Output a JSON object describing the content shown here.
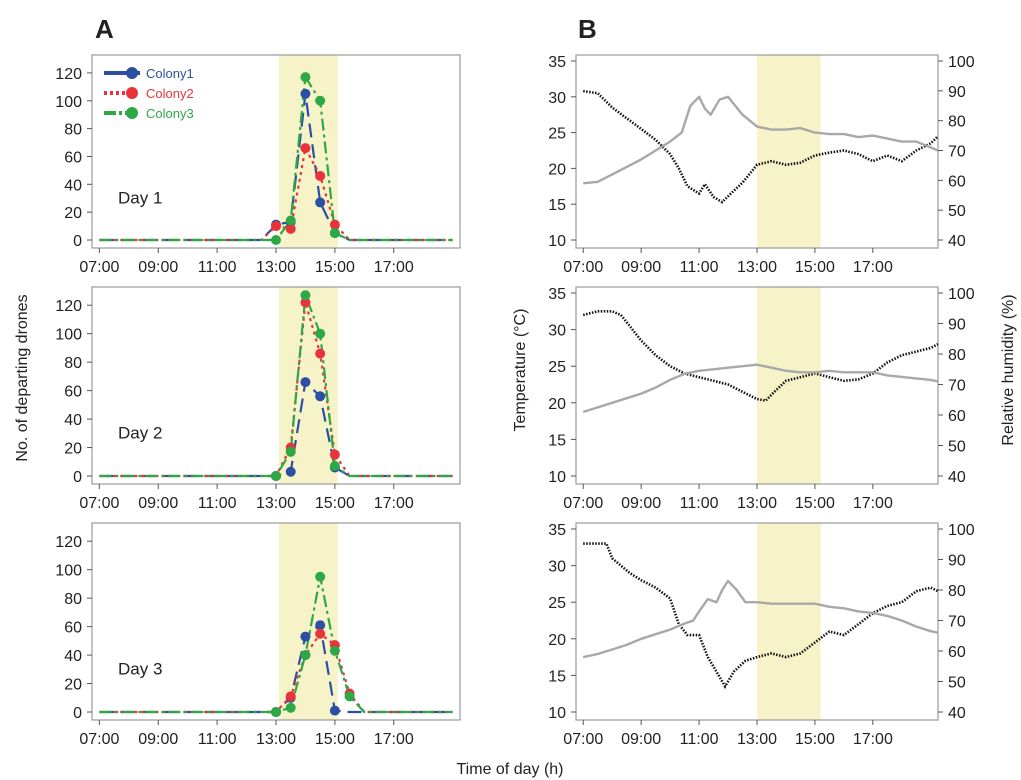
{
  "figure": {
    "panel_a_label": "A",
    "panel_b_label": "B",
    "ylabel_a": "No. of departing drones",
    "ylabel_b_left": "Temperature (°C)",
    "ylabel_b_right": "Relative humidity (%)",
    "xlabel": "Time of day (h)",
    "highlight_color": "#f7f3c8"
  },
  "chart_data": [
    {
      "type": "line",
      "panel": "A",
      "day_label": "Day 1",
      "x_ticks": [
        "07:00",
        "09:00",
        "11:00",
        "13:00",
        "15:00",
        "17:00"
      ],
      "ylim": [
        0,
        130
      ],
      "y_ticks": [
        0,
        20,
        40,
        60,
        80,
        100,
        120
      ],
      "x_range_h": [
        6.75,
        19.25
      ],
      "highlight_h": [
        13.1,
        15.1
      ],
      "legend": "top-left",
      "x": [
        "07:00",
        "07:30",
        "08:00",
        "08:30",
        "09:00",
        "09:30",
        "10:00",
        "10:30",
        "11:00",
        "11:30",
        "12:00",
        "12:30",
        "13:00",
        "13:30",
        "14:00",
        "14:30",
        "15:00",
        "15:30",
        "16:00",
        "16:30",
        "17:00",
        "17:30",
        "18:00",
        "18:30",
        "19:00"
      ],
      "series": [
        {
          "name": "Colony1",
          "color": "#2b4fa3",
          "dash": "14,7",
          "values": [
            0,
            0,
            0,
            0,
            0,
            0,
            0,
            0,
            0,
            0,
            0,
            0,
            11,
            13,
            105,
            27,
            5,
            0,
            0,
            0,
            0,
            0,
            0,
            0,
            0
          ]
        },
        {
          "name": "Colony2",
          "color": "#e8333a",
          "dash": "3,4",
          "values": [
            0,
            0,
            0,
            0,
            0,
            0,
            0,
            0,
            0,
            0,
            0,
            0,
            10,
            8,
            66,
            46,
            11,
            0,
            0,
            0,
            0,
            0,
            0,
            0,
            0
          ]
        },
        {
          "name": "Colony3",
          "color": "#2ca845",
          "dash": "12,4,3,4",
          "values": [
            0,
            0,
            0,
            0,
            0,
            0,
            0,
            0,
            0,
            0,
            0,
            0,
            0,
            14,
            117,
            100,
            5,
            0,
            0,
            0,
            0,
            0,
            0,
            0,
            0
          ]
        }
      ]
    },
    {
      "type": "line",
      "panel": "A",
      "day_label": "Day 2",
      "x_ticks": [
        "07:00",
        "09:00",
        "11:00",
        "13:00",
        "15:00",
        "17:00"
      ],
      "ylim": [
        0,
        130
      ],
      "y_ticks": [
        0,
        20,
        40,
        60,
        80,
        100,
        120
      ],
      "x_range_h": [
        6.75,
        19.25
      ],
      "highlight_h": [
        13.1,
        15.1
      ],
      "x": [
        "07:00",
        "07:30",
        "08:00",
        "08:30",
        "09:00",
        "09:30",
        "10:00",
        "10:30",
        "11:00",
        "11:30",
        "12:00",
        "12:30",
        "13:00",
        "13:30",
        "14:00",
        "14:30",
        "15:00",
        "15:30",
        "16:00",
        "16:30",
        "17:00",
        "17:30",
        "18:00",
        "18:30",
        "19:00"
      ],
      "series": [
        {
          "name": "Colony1",
          "color": "#2b4fa3",
          "dash": "14,7",
          "values": [
            0,
            0,
            0,
            0,
            0,
            0,
            0,
            0,
            0,
            0,
            0,
            0,
            0,
            3,
            66,
            56,
            6,
            0,
            0,
            0,
            0,
            0,
            0,
            0,
            0
          ]
        },
        {
          "name": "Colony2",
          "color": "#e8333a",
          "dash": "3,4",
          "values": [
            0,
            0,
            0,
            0,
            0,
            0,
            0,
            0,
            0,
            0,
            0,
            0,
            0,
            20,
            122,
            86,
            15,
            0,
            0,
            0,
            0,
            0,
            0,
            0,
            0
          ]
        },
        {
          "name": "Colony3",
          "color": "#2ca845",
          "dash": "12,4,3,4",
          "values": [
            0,
            0,
            0,
            0,
            0,
            0,
            0,
            0,
            0,
            0,
            0,
            0,
            0,
            17,
            127,
            100,
            7,
            0,
            0,
            0,
            0,
            0,
            0,
            0,
            0
          ]
        }
      ]
    },
    {
      "type": "line",
      "panel": "A",
      "day_label": "Day 3",
      "x_ticks": [
        "07:00",
        "09:00",
        "11:00",
        "13:00",
        "15:00",
        "17:00"
      ],
      "ylim": [
        0,
        130
      ],
      "y_ticks": [
        0,
        20,
        40,
        60,
        80,
        100,
        120
      ],
      "x_range_h": [
        6.75,
        19.25
      ],
      "highlight_h": [
        13.1,
        15.1
      ],
      "x": [
        "07:00",
        "07:30",
        "08:00",
        "08:30",
        "09:00",
        "09:30",
        "10:00",
        "10:30",
        "11:00",
        "11:30",
        "12:00",
        "12:30",
        "13:00",
        "13:30",
        "14:00",
        "14:30",
        "15:00",
        "15:30",
        "16:00",
        "16:30",
        "17:00",
        "17:30",
        "18:00",
        "18:30",
        "19:00"
      ],
      "series": [
        {
          "name": "Colony1",
          "color": "#2b4fa3",
          "dash": "14,7",
          "values": [
            0,
            0,
            0,
            0,
            0,
            0,
            0,
            0,
            0,
            0,
            0,
            0,
            0,
            10,
            53,
            61,
            1,
            0,
            0,
            0,
            0,
            0,
            0,
            0,
            0
          ]
        },
        {
          "name": "Colony2",
          "color": "#e8333a",
          "dash": "3,4",
          "values": [
            0,
            0,
            0,
            0,
            0,
            0,
            0,
            0,
            0,
            0,
            0,
            0,
            0,
            11,
            40,
            55,
            47,
            13,
            0,
            0,
            0,
            0,
            0,
            0,
            0
          ]
        },
        {
          "name": "Colony3",
          "color": "#2ca845",
          "dash": "12,4,3,4",
          "values": [
            0,
            0,
            0,
            0,
            0,
            0,
            0,
            0,
            0,
            0,
            0,
            0,
            0,
            3,
            40,
            95,
            43,
            11,
            0,
            0,
            0,
            0,
            0,
            0,
            0
          ]
        }
      ]
    },
    {
      "type": "line",
      "panel": "B",
      "x_ticks": [
        "07:00",
        "09:00",
        "11:00",
        "13:00",
        "15:00",
        "17:00"
      ],
      "ylim_left": [
        10,
        35
      ],
      "y_ticks_left": [
        10,
        15,
        20,
        25,
        30,
        35
      ],
      "ylim_right": [
        40,
        100
      ],
      "y_ticks_right": [
        40,
        50,
        60,
        70,
        80,
        90,
        100
      ],
      "x_range_h": [
        6.75,
        19.25
      ],
      "highlight_h": [
        13.0,
        15.2
      ],
      "series": [
        {
          "name": "Temperature",
          "axis": "left",
          "color": "#111111",
          "style": "dotted",
          "x": [
            7.0,
            7.5,
            8.0,
            8.5,
            9.0,
            9.5,
            10.0,
            10.3,
            10.6,
            11.0,
            11.2,
            11.5,
            11.8,
            12.1,
            12.5,
            13.0,
            13.5,
            14.0,
            14.5,
            15.0,
            15.5,
            16.0,
            16.5,
            17.0,
            17.5,
            18.0,
            18.5,
            19.0,
            19.25
          ],
          "y": [
            30.8,
            30.5,
            28.5,
            27,
            25.5,
            24,
            22,
            20,
            17.5,
            16.5,
            17.8,
            16,
            15.3,
            16.5,
            18,
            20.5,
            21,
            20.5,
            20.8,
            21.8,
            22.2,
            22.5,
            22,
            21,
            21.8,
            21,
            22.5,
            23.5,
            24.5
          ]
        },
        {
          "name": "Relative humidity",
          "axis": "right",
          "color": "#a8a8a8",
          "style": "solid",
          "x": [
            7.0,
            7.5,
            8.0,
            8.5,
            9.0,
            9.5,
            10.0,
            10.4,
            10.7,
            11.0,
            11.2,
            11.4,
            11.7,
            12.0,
            12.5,
            13.0,
            13.5,
            14.0,
            14.5,
            15.0,
            15.5,
            16.0,
            16.5,
            17.0,
            17.5,
            18.0,
            18.5,
            19.0,
            19.25
          ],
          "y": [
            59,
            59.5,
            62,
            64.5,
            67,
            70,
            73,
            76,
            85,
            88,
            84,
            82,
            87,
            88,
            82,
            78,
            77,
            77,
            77.5,
            76,
            75.5,
            75.5,
            74.5,
            75,
            74,
            73,
            73,
            71,
            70
          ]
        }
      ]
    },
    {
      "type": "line",
      "panel": "B",
      "x_ticks": [
        "07:00",
        "09:00",
        "11:00",
        "13:00",
        "15:00",
        "17:00"
      ],
      "ylim_left": [
        10,
        35
      ],
      "y_ticks_left": [
        10,
        15,
        20,
        25,
        30,
        35
      ],
      "ylim_right": [
        40,
        100
      ],
      "y_ticks_right": [
        40,
        50,
        60,
        70,
        80,
        90,
        100
      ],
      "x_range_h": [
        6.75,
        19.25
      ],
      "highlight_h": [
        13.0,
        15.2
      ],
      "series": [
        {
          "name": "Temperature",
          "axis": "left",
          "color": "#111111",
          "style": "dotted",
          "x": [
            7.0,
            7.5,
            8.0,
            8.3,
            8.6,
            9.0,
            9.5,
            10.0,
            10.5,
            11.0,
            11.5,
            12.0,
            12.5,
            13.0,
            13.3,
            13.6,
            14.0,
            14.5,
            15.0,
            15.5,
            16.0,
            16.5,
            17.0,
            17.5,
            18.0,
            18.5,
            19.0,
            19.25
          ],
          "y": [
            32,
            32.5,
            32.5,
            32,
            30.5,
            28.5,
            26.5,
            25,
            24,
            23.5,
            23,
            22.5,
            21.5,
            20.5,
            20.3,
            21.5,
            23,
            23.5,
            24,
            23.5,
            23,
            23.2,
            24,
            25.5,
            26.5,
            27,
            27.5,
            28
          ]
        },
        {
          "name": "Relative humidity",
          "axis": "right",
          "color": "#a8a8a8",
          "style": "solid",
          "x": [
            7.0,
            7.5,
            8.0,
            8.5,
            9.0,
            9.5,
            10.0,
            10.5,
            11.0,
            11.5,
            12.0,
            12.5,
            13.0,
            13.5,
            14.0,
            14.5,
            15.0,
            15.5,
            16.0,
            16.5,
            17.0,
            17.5,
            18.0,
            18.5,
            19.0,
            19.25
          ],
          "y": [
            61,
            62.5,
            64,
            65.5,
            67,
            69,
            71.5,
            73.5,
            74.5,
            75,
            75.5,
            76,
            76.5,
            75.5,
            74.5,
            74,
            74,
            74.5,
            74,
            74,
            74,
            73,
            72.5,
            72,
            71.5,
            71
          ]
        }
      ]
    },
    {
      "type": "line",
      "panel": "B",
      "x_ticks": [
        "07:00",
        "09:00",
        "11:00",
        "13:00",
        "15:00",
        "17:00"
      ],
      "ylim_left": [
        10,
        35
      ],
      "y_ticks_left": [
        10,
        15,
        20,
        25,
        30,
        35
      ],
      "ylim_right": [
        40,
        100
      ],
      "y_ticks_right": [
        40,
        50,
        60,
        70,
        80,
        90,
        100
      ],
      "x_range_h": [
        6.75,
        19.25
      ],
      "highlight_h": [
        13.0,
        15.2
      ],
      "series": [
        {
          "name": "Temperature",
          "axis": "left",
          "color": "#111111",
          "style": "dotted",
          "x": [
            7.0,
            7.5,
            7.8,
            8.0,
            8.3,
            8.6,
            9.0,
            9.5,
            10.0,
            10.3,
            10.6,
            11.0,
            11.3,
            11.6,
            11.9,
            12.2,
            12.6,
            13.0,
            13.5,
            14.0,
            14.5,
            15.0,
            15.5,
            16.0,
            16.5,
            17.0,
            17.5,
            18.0,
            18.5,
            19.0,
            19.25
          ],
          "y": [
            33,
            33,
            33,
            31,
            30,
            29,
            28,
            27,
            25.5,
            22,
            20.5,
            20.5,
            17.5,
            15.5,
            13.5,
            15.5,
            17,
            17.5,
            18,
            17.5,
            18,
            19.5,
            21,
            20.5,
            22,
            23.5,
            24.5,
            25,
            26.5,
            27,
            26.5
          ]
        },
        {
          "name": "Relative humidity",
          "axis": "right",
          "color": "#a8a8a8",
          "style": "solid",
          "x": [
            7.0,
            7.5,
            8.0,
            8.5,
            9.0,
            9.5,
            10.0,
            10.5,
            10.8,
            11.0,
            11.3,
            11.6,
            11.8,
            12.0,
            12.3,
            12.6,
            13.0,
            13.5,
            14.0,
            14.5,
            15.0,
            15.5,
            16.0,
            16.5,
            17.0,
            17.5,
            18.0,
            18.5,
            19.0,
            19.25
          ],
          "y": [
            58,
            59,
            60.5,
            62,
            64,
            65.5,
            67,
            69,
            70,
            73,
            77,
            76,
            80,
            83,
            80,
            76,
            76,
            75.5,
            75.5,
            75.5,
            75.5,
            74.5,
            74,
            73,
            72.5,
            71.5,
            70,
            68,
            66.5,
            66
          ]
        }
      ]
    }
  ]
}
